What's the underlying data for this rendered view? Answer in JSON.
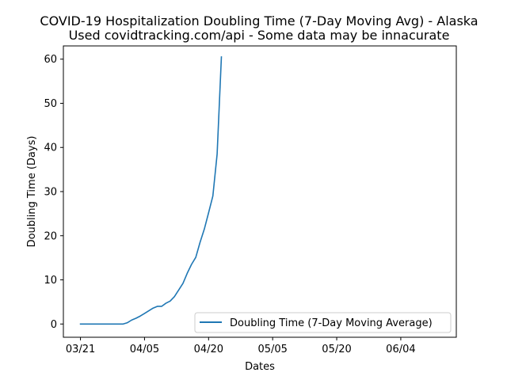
{
  "chart_data": {
    "type": "line",
    "title": "COVID-19 Hospitalization Doubling Time (7-Day Moving Avg) - Alaska",
    "subtitle": "Used covidtracking.com/api - Some data may be innacurate",
    "xlabel": "Dates",
    "ylabel": "Doubling Time (Days)",
    "xlim": [
      "2020-03-17",
      "2020-06-17"
    ],
    "ylim": [
      -3,
      63
    ],
    "x_ticks": [
      {
        "date": "2020-03-21",
        "label": "03/21"
      },
      {
        "date": "2020-04-05",
        "label": "04/05"
      },
      {
        "date": "2020-04-20",
        "label": "04/20"
      },
      {
        "date": "2020-05-05",
        "label": "05/05"
      },
      {
        "date": "2020-05-20",
        "label": "05/20"
      },
      {
        "date": "2020-06-04",
        "label": "06/04"
      }
    ],
    "y_ticks": [
      0,
      10,
      20,
      30,
      40,
      50,
      60
    ],
    "grid": false,
    "legend_position": "lower right",
    "series": [
      {
        "name": "Doubling Time (7-Day Moving Average)",
        "color": "#1f77b4",
        "points": [
          {
            "x": "2020-03-21",
            "y": 0
          },
          {
            "x": "2020-03-22",
            "y": 0
          },
          {
            "x": "2020-03-23",
            "y": 0
          },
          {
            "x": "2020-03-24",
            "y": 0
          },
          {
            "x": "2020-03-25",
            "y": 0
          },
          {
            "x": "2020-03-26",
            "y": 0
          },
          {
            "x": "2020-03-27",
            "y": 0
          },
          {
            "x": "2020-03-28",
            "y": 0
          },
          {
            "x": "2020-03-29",
            "y": 0
          },
          {
            "x": "2020-03-30",
            "y": 0
          },
          {
            "x": "2020-03-31",
            "y": 0
          },
          {
            "x": "2020-04-01",
            "y": 0.3
          },
          {
            "x": "2020-04-02",
            "y": 0.9
          },
          {
            "x": "2020-04-03",
            "y": 1.3
          },
          {
            "x": "2020-04-04",
            "y": 1.8
          },
          {
            "x": "2020-04-05",
            "y": 2.4
          },
          {
            "x": "2020-04-06",
            "y": 3.0
          },
          {
            "x": "2020-04-07",
            "y": 3.6
          },
          {
            "x": "2020-04-08",
            "y": 4.0
          },
          {
            "x": "2020-04-09",
            "y": 4.0
          },
          {
            "x": "2020-04-10",
            "y": 4.7
          },
          {
            "x": "2020-04-11",
            "y": 5.2
          },
          {
            "x": "2020-04-12",
            "y": 6.2
          },
          {
            "x": "2020-04-13",
            "y": 7.7
          },
          {
            "x": "2020-04-14",
            "y": 9.2
          },
          {
            "x": "2020-04-15",
            "y": 11.5
          },
          {
            "x": "2020-04-16",
            "y": 13.5
          },
          {
            "x": "2020-04-17",
            "y": 15.1
          },
          {
            "x": "2020-04-18",
            "y": 18.5
          },
          {
            "x": "2020-04-19",
            "y": 21.5
          },
          {
            "x": "2020-04-20",
            "y": 25.2
          },
          {
            "x": "2020-04-21",
            "y": 29.0
          },
          {
            "x": "2020-04-22",
            "y": 38.5
          },
          {
            "x": "2020-04-23",
            "y": 60.5
          }
        ]
      }
    ]
  }
}
